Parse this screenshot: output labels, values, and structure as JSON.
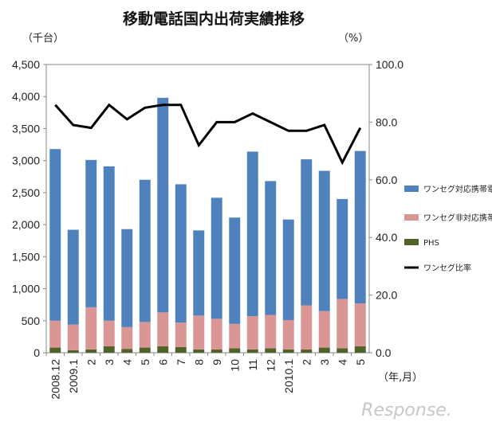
{
  "chart_data": {
    "type": "bar",
    "title": "移動電話国内出荷実績推移",
    "y_left_unit": "（千台）",
    "y_right_unit": "（%）",
    "x_unit": "（年,月）",
    "categories": [
      "2008.12",
      "2009.1",
      "2",
      "3",
      "4",
      "5",
      "6",
      "7",
      "8",
      "9",
      "10",
      "11",
      "12",
      "2010.1",
      "2",
      "3",
      "4",
      "5"
    ],
    "ylim_left": [
      0,
      4500
    ],
    "yticks_left": [
      "0",
      "500",
      "1,000",
      "1,500",
      "2,000",
      "2,500",
      "3,000",
      "3,500",
      "4,000",
      "4,500"
    ],
    "ylim_right": [
      0,
      100
    ],
    "yticks_right": [
      "0.0",
      "20.0",
      "40.0",
      "60.0",
      "80.0",
      "100.0"
    ],
    "stacked": true,
    "series": [
      {
        "name": "PHS",
        "color": "#4f6228",
        "values": [
          80,
          40,
          50,
          100,
          60,
          80,
          100,
          90,
          50,
          50,
          70,
          50,
          70,
          50,
          50,
          80,
          70,
          100
        ]
      },
      {
        "name": "ワンセグ非対応携帯電話",
        "color": "#d99694",
        "values": [
          420,
          400,
          660,
          400,
          340,
          400,
          530,
          380,
          530,
          480,
          380,
          520,
          520,
          460,
          690,
          570,
          770,
          670
        ]
      },
      {
        "name": "ワンセグ対応携帯電話",
        "color": "#4f81bd",
        "values": [
          2680,
          1480,
          2300,
          2410,
          1530,
          2220,
          3350,
          2160,
          1330,
          1890,
          1660,
          2570,
          2090,
          1570,
          2280,
          2190,
          1560,
          2380
        ]
      }
    ],
    "line_series": {
      "name": "ワンセグ比率",
      "color": "#000000",
      "axis": "right",
      "values": [
        86,
        79,
        78,
        86,
        81,
        85,
        86,
        86,
        72,
        80,
        80,
        83,
        80,
        77,
        77,
        79,
        66,
        78
      ]
    },
    "legend_placement": "right",
    "grid": false,
    "watermark": "Response."
  }
}
